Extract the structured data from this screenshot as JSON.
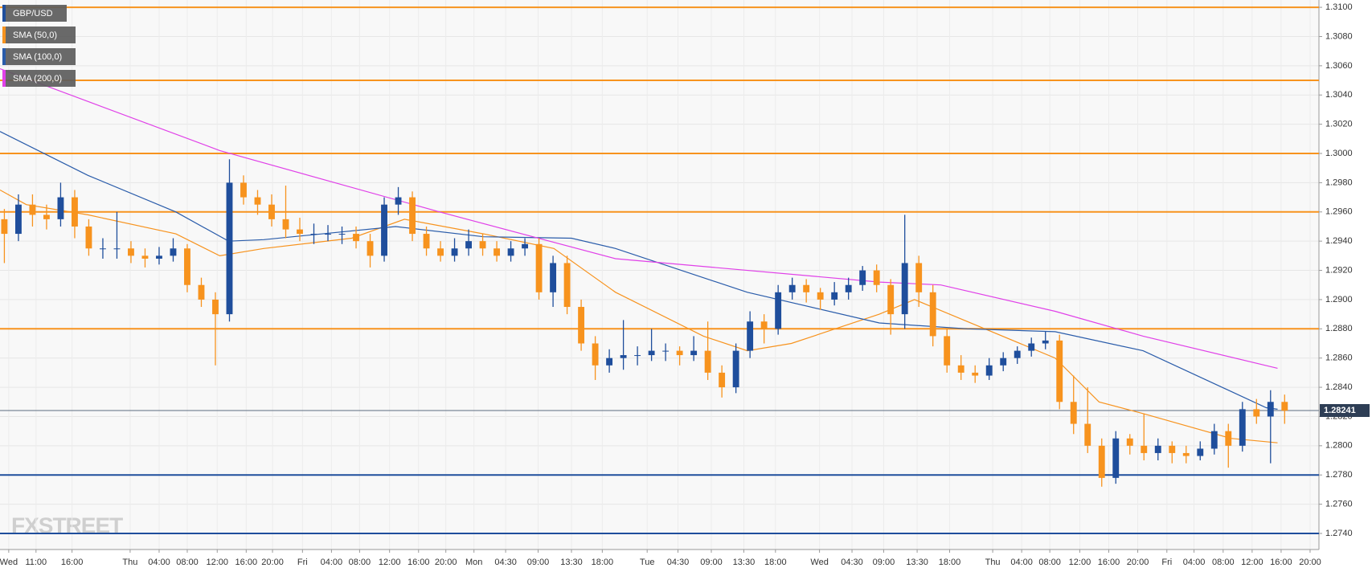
{
  "chart_data": {
    "type": "candlestick",
    "watermark": "FXSTREET",
    "xlim": [
      -0.31,
      93.44
    ],
    "xticks": [
      {
        "value": 0.31,
        "label": "Wed"
      },
      {
        "value": 2.25,
        "label": "11:00"
      },
      {
        "value": 4.81,
        "label": "16:00"
      },
      {
        "value": 8.94,
        "label": "Thu"
      },
      {
        "value": 11,
        "label": "04:00"
      },
      {
        "value": 13,
        "label": "08:00"
      },
      {
        "value": 15.13,
        "label": "12:00"
      },
      {
        "value": 17.19,
        "label": "16:00"
      },
      {
        "value": 19.06,
        "label": "20:00"
      },
      {
        "value": 21.19,
        "label": "Fri"
      },
      {
        "value": 23.25,
        "label": "04:00"
      },
      {
        "value": 25.25,
        "label": "08:00"
      },
      {
        "value": 27.38,
        "label": "12:00"
      },
      {
        "value": 29.44,
        "label": "16:00"
      },
      {
        "value": 31.38,
        "label": "20:00"
      },
      {
        "value": 33.38,
        "label": "Mon"
      },
      {
        "value": 35.63,
        "label": "04:30"
      },
      {
        "value": 37.94,
        "label": "09:00"
      },
      {
        "value": 40.31,
        "label": "13:30"
      },
      {
        "value": 42.5,
        "label": "18:00"
      },
      {
        "value": 45.69,
        "label": "Tue"
      },
      {
        "value": 47.88,
        "label": "04:30"
      },
      {
        "value": 50.25,
        "label": "09:00"
      },
      {
        "value": 52.56,
        "label": "13:30"
      },
      {
        "value": 54.81,
        "label": "18:00"
      },
      {
        "value": 57.94,
        "label": "Wed"
      },
      {
        "value": 60.25,
        "label": "04:30"
      },
      {
        "value": 62.5,
        "label": "09:00"
      },
      {
        "value": 64.88,
        "label": "13:30"
      },
      {
        "value": 67.19,
        "label": "18:00"
      },
      {
        "value": 70.25,
        "label": "Thu"
      },
      {
        "value": 72.31,
        "label": "04:00"
      },
      {
        "value": 74.31,
        "label": "08:00"
      },
      {
        "value": 76.44,
        "label": "12:00"
      },
      {
        "value": 78.5,
        "label": "16:00"
      },
      {
        "value": 80.56,
        "label": "20:00"
      },
      {
        "value": 82.63,
        "label": "Fri"
      },
      {
        "value": 84.56,
        "label": "04:00"
      },
      {
        "value": 86.63,
        "label": "08:00"
      },
      {
        "value": 88.69,
        "label": "12:00"
      },
      {
        "value": 90.75,
        "label": "16:00"
      },
      {
        "value": 92.81,
        "label": "20:00"
      }
    ],
    "ylim": [
      1.2729,
      1.3105
    ],
    "yticks": [
      {
        "value": 1.274,
        "label": "1.2740"
      },
      {
        "value": 1.276,
        "label": "1.2760"
      },
      {
        "value": 1.278,
        "label": "1.2780"
      },
      {
        "value": 1.28,
        "label": "1.2800"
      },
      {
        "value": 1.282,
        "label": "1.2820"
      },
      {
        "value": 1.284,
        "label": "1.2840"
      },
      {
        "value": 1.286,
        "label": "1.2860"
      },
      {
        "value": 1.288,
        "label": "1.2880"
      },
      {
        "value": 1.29,
        "label": "1.2900"
      },
      {
        "value": 1.292,
        "label": "1.2920"
      },
      {
        "value": 1.294,
        "label": "1.2940"
      },
      {
        "value": 1.296,
        "label": "1.2960"
      },
      {
        "value": 1.298,
        "label": "1.2980"
      },
      {
        "value": 1.3,
        "label": "1.3000"
      },
      {
        "value": 1.302,
        "label": "1.3020"
      },
      {
        "value": 1.304,
        "label": "1.3040"
      },
      {
        "value": 1.306,
        "label": "1.3060"
      },
      {
        "value": 1.308,
        "label": "1.3080"
      },
      {
        "value": 1.31,
        "label": "1.3100"
      }
    ],
    "grid": true,
    "candles": {
      "name": "GBP/USD",
      "up_color": "#1f4e9c",
      "down_color": "#f7931e",
      "open": [
        1.2955,
        1.2945,
        1.2965,
        1.2958,
        1.2955,
        1.297,
        1.295,
        1.2935,
        1.2935,
        1.2935,
        1.293,
        1.2928,
        1.293,
        1.2935,
        1.291,
        1.29,
        1.289,
        1.298,
        1.297,
        1.2965,
        1.2955,
        1.2948,
        1.2945,
        1.2945,
        1.2945,
        1.2945,
        1.294,
        1.293,
        1.2965,
        1.297,
        1.2945,
        1.2935,
        1.293,
        1.2935,
        1.294,
        1.2935,
        1.293,
        1.2935,
        1.2938,
        1.2905,
        1.2925,
        1.2895,
        1.287,
        1.2855,
        1.286,
        1.2862,
        1.2862,
        1.2865,
        1.2865,
        1.2862,
        1.2865,
        1.285,
        1.284,
        1.2865,
        1.2885,
        1.288,
        1.2905,
        1.291,
        1.2905,
        1.29,
        1.2905,
        1.291,
        1.292,
        1.291,
        1.289,
        1.2925,
        1.2905,
        1.2875,
        1.2855,
        1.285,
        1.2848,
        1.2855,
        1.286,
        1.2865,
        1.287,
        1.2872,
        1.283,
        1.2815,
        1.28,
        1.2778,
        1.2805,
        1.28,
        1.2795,
        1.28,
        1.2795,
        1.2793,
        1.2798,
        1.281,
        1.28,
        1.2825,
        1.282,
        1.283
      ],
      "high": [
        1.2962,
        1.2972,
        1.2972,
        1.2965,
        1.298,
        1.2975,
        1.2955,
        1.2942,
        1.296,
        1.294,
        1.2935,
        1.2936,
        1.2942,
        1.2938,
        1.2915,
        1.2905,
        1.2996,
        1.2985,
        1.2975,
        1.2972,
        1.2978,
        1.2956,
        1.2952,
        1.2951,
        1.295,
        1.295,
        1.2945,
        1.297,
        1.2977,
        1.2974,
        1.295,
        1.294,
        1.2942,
        1.2948,
        1.2945,
        1.294,
        1.294,
        1.2942,
        1.2942,
        1.293,
        1.293,
        1.29,
        1.2875,
        1.2866,
        1.2886,
        1.2868,
        1.288,
        1.287,
        1.2868,
        1.2875,
        1.2885,
        1.2855,
        1.287,
        1.2892,
        1.289,
        1.291,
        1.2915,
        1.2914,
        1.2908,
        1.2912,
        1.2915,
        1.2923,
        1.2924,
        1.2914,
        1.2958,
        1.293,
        1.291,
        1.288,
        1.2862,
        1.2855,
        1.286,
        1.2864,
        1.2868,
        1.2874,
        1.2878,
        1.2876,
        1.2848,
        1.284,
        1.2805,
        1.281,
        1.2808,
        1.2822,
        1.2805,
        1.2803,
        1.28,
        1.2803,
        1.2815,
        1.2815,
        1.283,
        1.2832,
        1.2838,
        1.2835
      ],
      "low": [
        1.2925,
        1.294,
        1.295,
        1.2948,
        1.295,
        1.2942,
        1.293,
        1.2928,
        1.2928,
        1.2925,
        1.2922,
        1.2924,
        1.2926,
        1.2905,
        1.2895,
        1.2855,
        1.2885,
        1.2965,
        1.2958,
        1.295,
        1.2942,
        1.294,
        1.2938,
        1.294,
        1.2938,
        1.2935,
        1.2922,
        1.2926,
        1.2958,
        1.294,
        1.293,
        1.2926,
        1.2926,
        1.293,
        1.293,
        1.2926,
        1.2926,
        1.293,
        1.29,
        1.2895,
        1.289,
        1.2865,
        1.2845,
        1.285,
        1.2852,
        1.2855,
        1.2858,
        1.2858,
        1.2855,
        1.2858,
        1.2845,
        1.2833,
        1.2836,
        1.286,
        1.287,
        1.2876,
        1.29,
        1.2898,
        1.2893,
        1.2896,
        1.29,
        1.2906,
        1.2905,
        1.2876,
        1.288,
        1.2895,
        1.2868,
        1.285,
        1.2845,
        1.2843,
        1.2845,
        1.2851,
        1.2856,
        1.2861,
        1.2866,
        1.2825,
        1.2808,
        1.2795,
        1.2772,
        1.2774,
        1.2794,
        1.279,
        1.279,
        1.2788,
        1.2788,
        1.279,
        1.2794,
        1.2785,
        1.2796,
        1.2815,
        1.2788,
        1.2815
      ],
      "close": [
        1.2945,
        1.2965,
        1.2958,
        1.2955,
        1.297,
        1.295,
        1.2935,
        1.2935,
        1.2935,
        1.293,
        1.2928,
        1.293,
        1.2935,
        1.291,
        1.29,
        1.289,
        1.298,
        1.297,
        1.2965,
        1.2955,
        1.2948,
        1.2945,
        1.2945,
        1.2945,
        1.2945,
        1.294,
        1.293,
        1.2965,
        1.297,
        1.2945,
        1.2935,
        1.293,
        1.2935,
        1.294,
        1.2935,
        1.293,
        1.2935,
        1.2938,
        1.2905,
        1.2925,
        1.2895,
        1.287,
        1.2855,
        1.286,
        1.2862,
        1.2862,
        1.2865,
        1.2865,
        1.2862,
        1.2865,
        1.285,
        1.284,
        1.2865,
        1.2885,
        1.288,
        1.2905,
        1.291,
        1.2905,
        1.29,
        1.2905,
        1.291,
        1.292,
        1.291,
        1.289,
        1.2925,
        1.2905,
        1.2875,
        1.2855,
        1.285,
        1.2848,
        1.2855,
        1.286,
        1.2865,
        1.287,
        1.2872,
        1.283,
        1.2815,
        1.28,
        1.2778,
        1.2805,
        1.28,
        1.2795,
        1.28,
        1.2795,
        1.2793,
        1.2798,
        1.281,
        1.28,
        1.2825,
        1.282,
        1.283,
        1.2824
      ]
    },
    "series": [
      {
        "name": "SMA (50,0)",
        "color": "#f7931e",
        "x": [
          -0.31,
          1.56,
          5.94,
          12.19,
          15.31,
          18.44,
          24.69,
          28.44,
          34.06,
          39.06,
          43.44,
          49.69,
          52.81,
          55.94,
          62.19,
          64.69,
          68.44,
          74.69,
          77.81,
          80.94,
          87.19,
          90.5
        ],
        "values": [
          1.2975,
          1.2965,
          1.2958,
          1.2945,
          1.293,
          1.2935,
          1.2942,
          1.2955,
          1.2945,
          1.2935,
          1.2905,
          1.2875,
          1.2865,
          1.287,
          1.289,
          1.29,
          1.2885,
          1.286,
          1.283,
          1.2822,
          1.2805,
          1.2802
        ]
      },
      {
        "name": "SMA (100,0)",
        "color": "#2a5caa",
        "x": [
          -0.31,
          5.94,
          12.19,
          15.94,
          18.44,
          27.81,
          34.06,
          40.31,
          43.44,
          52.81,
          62.19,
          68.44,
          74.69,
          80.94,
          89.69,
          90.5
        ],
        "values": [
          1.3015,
          1.2985,
          1.296,
          1.294,
          1.2941,
          1.295,
          1.2943,
          1.2942,
          1.2935,
          1.2905,
          1.2884,
          1.288,
          1.2878,
          1.2865,
          1.2826,
          1.2825
        ]
      },
      {
        "name": "SMA (200,0)",
        "color": "#e040e8",
        "x": [
          -0.31,
          15.31,
          30.94,
          43.44,
          62.19,
          66.56,
          74.69,
          80.94,
          90.5
        ],
        "values": [
          1.3058,
          1.3002,
          1.296,
          1.2928,
          1.2912,
          1.291,
          1.2892,
          1.2875,
          1.2853
        ]
      }
    ],
    "levels": [
      {
        "value": 1.31,
        "color": "#f7931e"
      },
      {
        "value": 1.305,
        "color": "#f7931e"
      },
      {
        "value": 1.3,
        "color": "#f7931e"
      },
      {
        "value": 1.296,
        "color": "#f7931e"
      },
      {
        "value": 1.288,
        "color": "#f7931e"
      },
      {
        "value": 1.278,
        "color": "#1f4e9c"
      },
      {
        "value": 1.274,
        "color": "#1f4e9c"
      }
    ],
    "last_price": 1.28241
  }
}
